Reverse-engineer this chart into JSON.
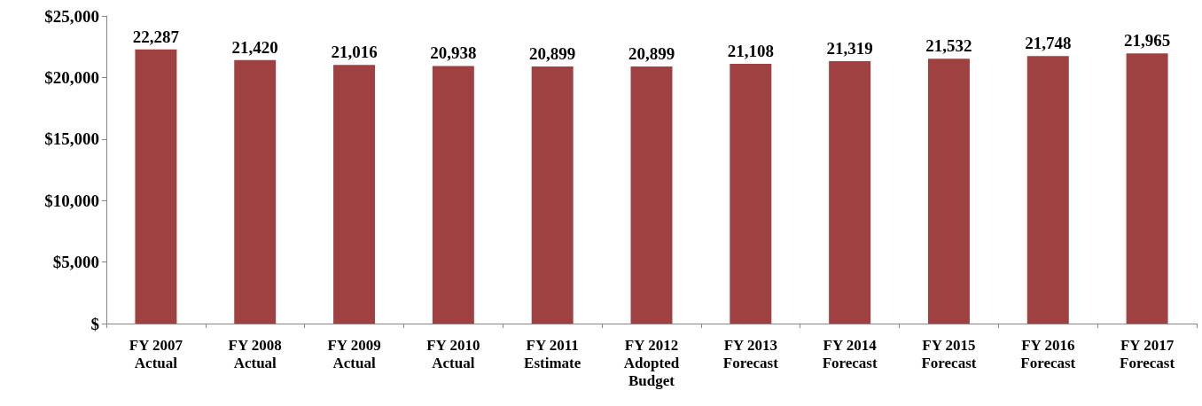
{
  "chart_data": {
    "type": "bar",
    "categories": [
      "FY 2007\nActual",
      "FY 2008\nActual",
      "FY 2009\nActual",
      "FY 2010\nActual",
      "FY 2011\nEstimate",
      "FY 2012\nAdopted\nBudget",
      "FY 2013\nForecast",
      "FY 2014\nForecast",
      "FY 2015\nForecast",
      "FY 2016\nForecast",
      "FY 2017\nForecast"
    ],
    "values": [
      22287,
      21420,
      21016,
      20938,
      20899,
      20899,
      21108,
      21319,
      21532,
      21748,
      21965
    ],
    "color": "#9e4140",
    "ylim": [
      0,
      25000
    ],
    "yticks": [
      {
        "value": 0,
        "label": "$"
      },
      {
        "value": 5000,
        "label": "$5,000"
      },
      {
        "value": 10000,
        "label": "$10,000"
      },
      {
        "value": 15000,
        "label": "$15,000"
      },
      {
        "value": 20000,
        "label": "$20,000"
      },
      {
        "value": 25000,
        "label": "$25,000"
      }
    ],
    "grid": false,
    "value_labels": [
      "22,287",
      "21,420",
      "21,016",
      "20,938",
      "20,899",
      "20,899",
      "21,108",
      "21,319",
      "21,532",
      "21,748",
      "21,965"
    ]
  }
}
